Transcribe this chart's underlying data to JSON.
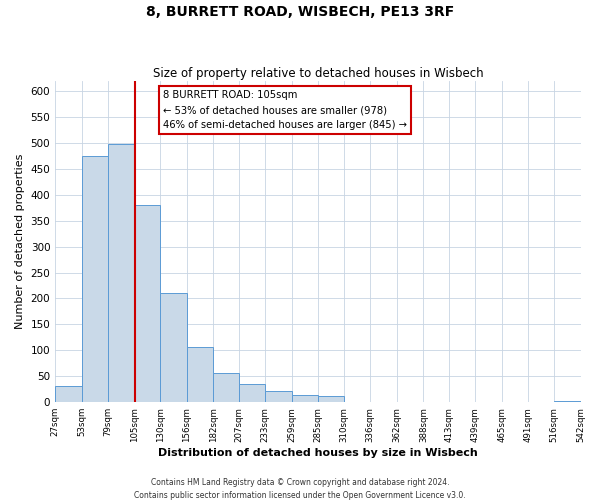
{
  "title": "8, BURRETT ROAD, WISBECH, PE13 3RF",
  "subtitle": "Size of property relative to detached houses in Wisbech",
  "xlabel": "Distribution of detached houses by size in Wisbech",
  "ylabel": "Number of detached properties",
  "footer_line1": "Contains HM Land Registry data © Crown copyright and database right 2024.",
  "footer_line2": "Contains public sector information licensed under the Open Government Licence v3.0.",
  "bar_edges": [
    27,
    53,
    79,
    105,
    130,
    156,
    182,
    207,
    233,
    259,
    285,
    310,
    336,
    362,
    388,
    413,
    439,
    465,
    491,
    516,
    542
  ],
  "bar_heights": [
    32,
    475,
    498,
    381,
    211,
    106,
    57,
    36,
    22,
    13,
    12,
    0,
    0,
    0,
    0,
    0,
    0,
    0,
    0,
    2,
    2
  ],
  "bar_color": "#c9d9e8",
  "bar_edge_color": "#5b9bd5",
  "vline_x": 105,
  "vline_color": "#cc0000",
  "annotation_title": "8 BURRETT ROAD: 105sqm",
  "annotation_line1": "← 53% of detached houses are smaller (978)",
  "annotation_line2": "46% of semi-detached houses are larger (845) →",
  "annotation_box_color": "white",
  "annotation_box_edge_color": "#cc0000",
  "ylim": [
    0,
    620
  ],
  "yticks": [
    0,
    50,
    100,
    150,
    200,
    250,
    300,
    350,
    400,
    450,
    500,
    550,
    600
  ],
  "tick_labels": [
    "27sqm",
    "53sqm",
    "79sqm",
    "105sqm",
    "130sqm",
    "156sqm",
    "182sqm",
    "207sqm",
    "233sqm",
    "259sqm",
    "285sqm",
    "310sqm",
    "336sqm",
    "362sqm",
    "388sqm",
    "413sqm",
    "439sqm",
    "465sqm",
    "491sqm",
    "516sqm",
    "542sqm"
  ],
  "background_color": "#ffffff",
  "grid_color": "#c8d4e3"
}
